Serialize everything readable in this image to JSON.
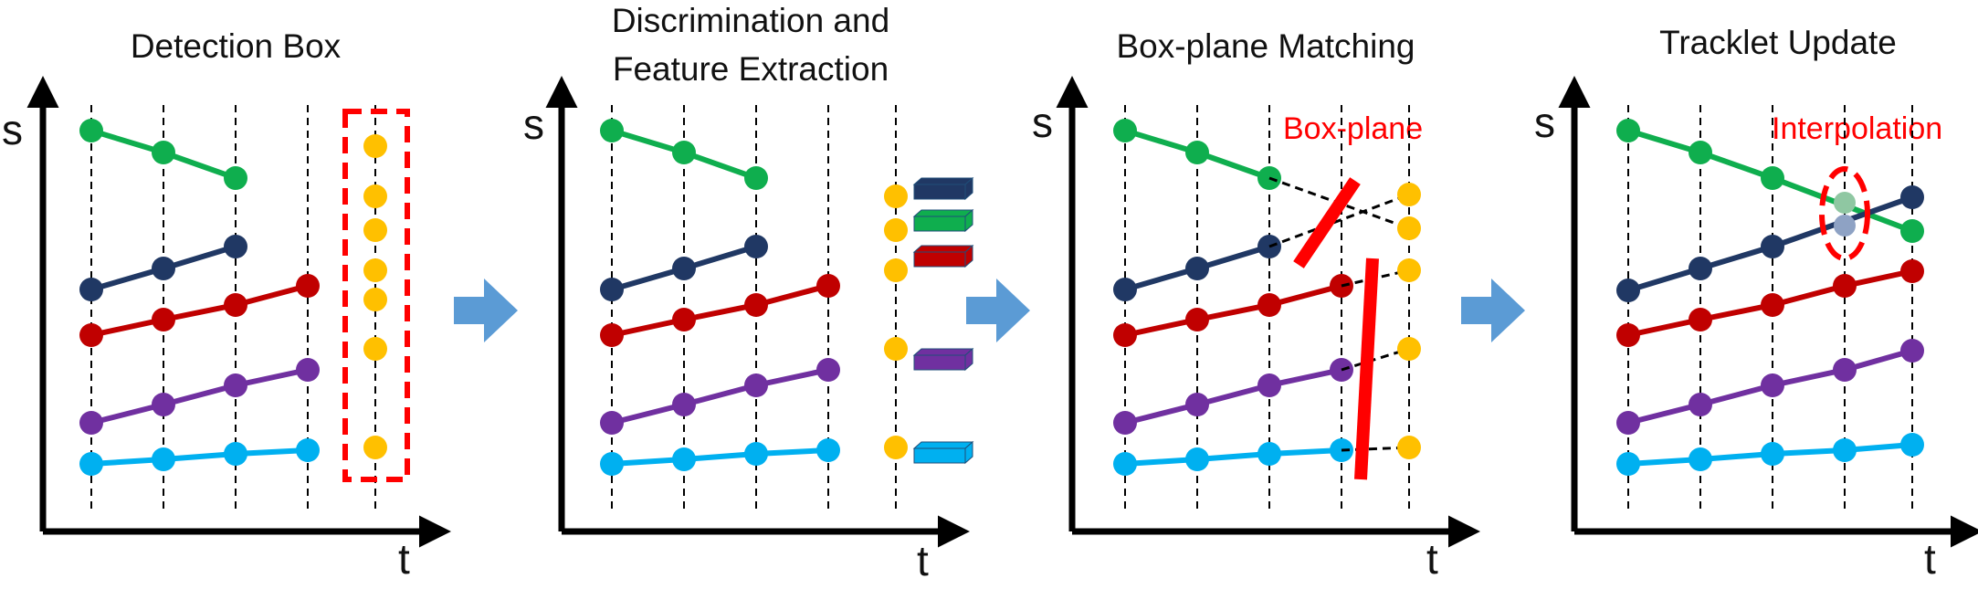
{
  "panels": [
    {
      "title_lines": [
        "Detection Box"
      ],
      "y_axis": "s",
      "x_axis": "t"
    },
    {
      "title_lines": [
        "Discrimination and",
        "Feature Extraction"
      ],
      "y_axis": "s",
      "x_axis": "t"
    },
    {
      "title_lines": [
        "Box-plane Matching"
      ],
      "y_axis": "s",
      "x_axis": "t",
      "annotation": "Box-plane"
    },
    {
      "title_lines": [
        "Tracklet Update"
      ],
      "y_axis": "s",
      "x_axis": "t",
      "annotation": "Interpolation"
    }
  ],
  "colors": {
    "green": "#0fae4e",
    "navy": "#203864",
    "red": "#c00000",
    "purple": "#7030a0",
    "cyan": "#00b0f0",
    "detection": "#ffc000",
    "highlight": "#ff0000",
    "arrow": "#5b9bd5"
  }
}
